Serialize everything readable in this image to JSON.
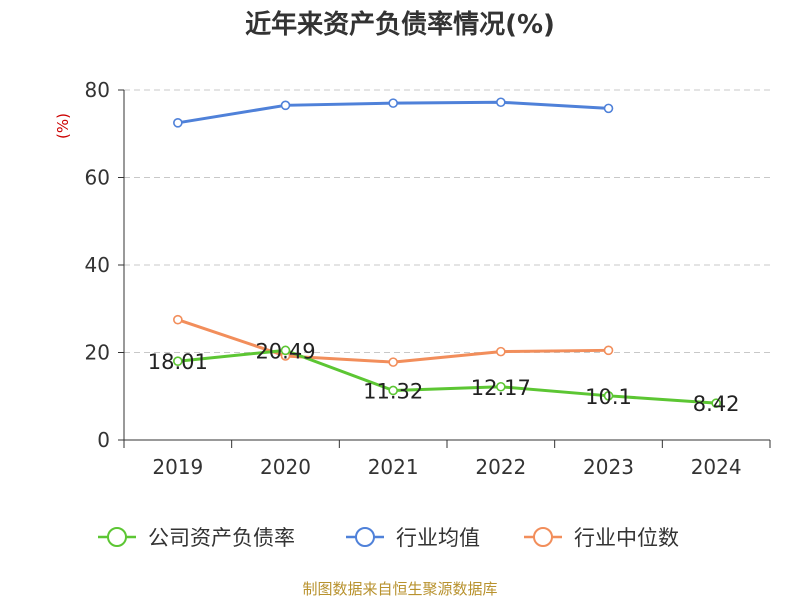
{
  "chart_data": {
    "type": "line",
    "title": "近年来资产负债率情况(%)",
    "ylabel": "(%)",
    "xlabel": "",
    "categories": [
      "2019",
      "2020",
      "2021",
      "2022",
      "2023",
      "2024"
    ],
    "ylim": [
      0,
      80
    ],
    "yticks": [
      0,
      20,
      40,
      60,
      80
    ],
    "grid": true,
    "legend_position": "bottom",
    "series": [
      {
        "name": "公司资产负债率",
        "color": "#5cc633",
        "values": [
          18.01,
          20.49,
          11.32,
          12.17,
          10.1,
          8.42
        ],
        "labels": [
          "18.01",
          "20.49",
          "11.32",
          "12.17",
          "10.1",
          "8.42"
        ]
      },
      {
        "name": "行业均值",
        "color": "#4f81d9",
        "values": [
          72.5,
          76.5,
          77.0,
          77.2,
          75.8,
          null
        ]
      },
      {
        "name": "行业中位数",
        "color": "#f28e5b",
        "values": [
          27.5,
          19.2,
          17.8,
          20.2,
          20.5,
          null
        ]
      }
    ]
  },
  "source": "制图数据来自恒生聚源数据库"
}
